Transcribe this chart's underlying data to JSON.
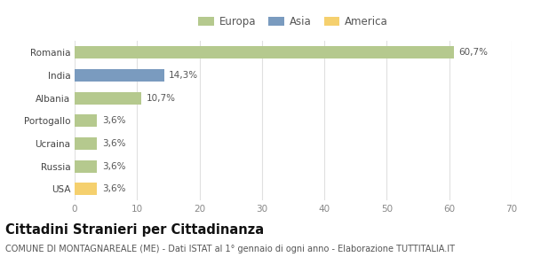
{
  "categories": [
    "Romania",
    "India",
    "Albania",
    "Portogallo",
    "Ucraina",
    "Russia",
    "USA"
  ],
  "values": [
    60.7,
    14.3,
    10.7,
    3.6,
    3.6,
    3.6,
    3.6
  ],
  "labels": [
    "60,7%",
    "14,3%",
    "10,7%",
    "3,6%",
    "3,6%",
    "3,6%",
    "3,6%"
  ],
  "colors": [
    "#b5c98e",
    "#7a9bbf",
    "#b5c98e",
    "#b5c98e",
    "#b5c98e",
    "#b5c98e",
    "#f5d06e"
  ],
  "legend_items": [
    {
      "label": "Europa",
      "color": "#b5c98e"
    },
    {
      "label": "Asia",
      "color": "#7a9bbf"
    },
    {
      "label": "America",
      "color": "#f5d06e"
    }
  ],
  "xlim": [
    0,
    70
  ],
  "xticks": [
    0,
    10,
    20,
    30,
    40,
    50,
    60,
    70
  ],
  "title": "Cittadini Stranieri per Cittadinanza",
  "subtitle": "COMUNE DI MONTAGNAREALE (ME) - Dati ISTAT al 1° gennaio di ogni anno - Elaborazione TUTTITALIA.IT",
  "background_color": "#ffffff",
  "grid_color": "#e0e0e0",
  "bar_height": 0.55,
  "label_fontsize": 7.5,
  "tick_fontsize": 7.5,
  "title_fontsize": 10.5,
  "subtitle_fontsize": 7,
  "legend_fontsize": 8.5
}
